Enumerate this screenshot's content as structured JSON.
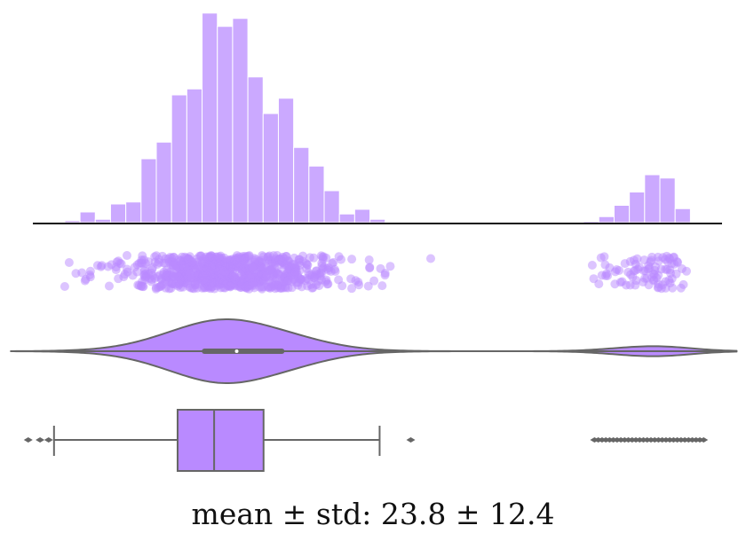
{
  "chart_data": [
    {
      "type": "bar",
      "subtype": "histogram",
      "bin_start": 5.2,
      "bin_width": 1.42,
      "counts": [
        3,
        16,
        5,
        28,
        31,
        96,
        121,
        192,
        201,
        315,
        295,
        307,
        219,
        164,
        187,
        113,
        85,
        48,
        13,
        20,
        5,
        1,
        0,
        1,
        0,
        0,
        0,
        0,
        0,
        0,
        0,
        0,
        0,
        0,
        2,
        9,
        26,
        46,
        72,
        67,
        21
      ],
      "grid": false,
      "color": "#cba9ff"
    },
    {
      "type": "scatter",
      "subtype": "strip",
      "derived_from": "histogram",
      "color": "#b98aff"
    },
    {
      "type": "violin",
      "inner_box": {
        "q1": 18.2,
        "median": 21.2,
        "q3": 25.4
      },
      "range": [
        0.2,
        67.8
      ],
      "color": "#b98aff"
    },
    {
      "type": "box",
      "whisker_low": 4.2,
      "q1": 15.7,
      "median": 19.1,
      "q3": 23.7,
      "whisker_high": 34.5,
      "outliers": [
        1.8,
        2.9,
        3.7,
        37.4
      ],
      "outlier_band": [
        54.5,
        64.9
      ],
      "color": "#b98aff"
    }
  ],
  "caption": {
    "text": "mean ± std:  23.8 ± 12.4",
    "mean": 23.8,
    "std": 12.4
  }
}
